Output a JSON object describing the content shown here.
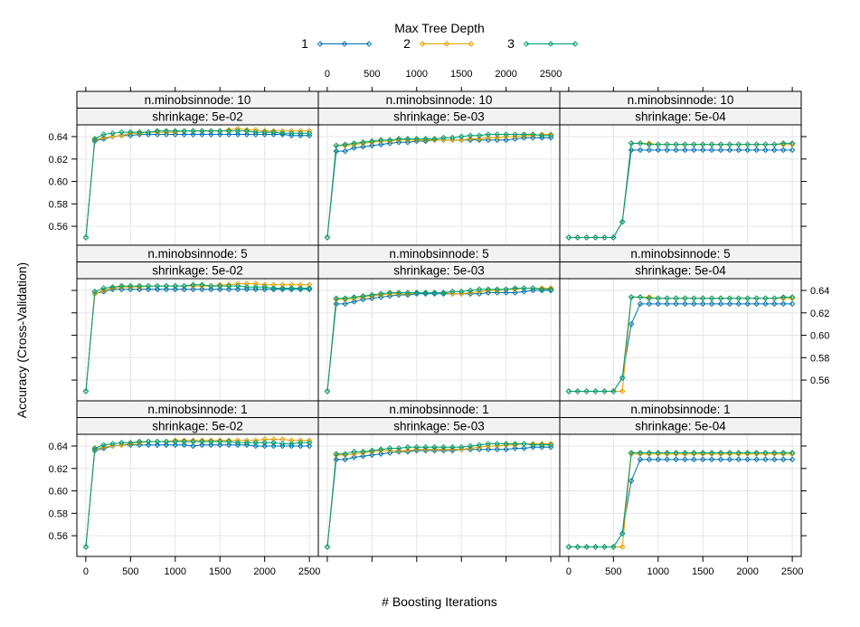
{
  "chart_data": {
    "type": "line",
    "legend": {
      "title": "Max Tree Depth",
      "placement": "top",
      "entries": [
        "1",
        "2",
        "3"
      ]
    },
    "xlabel": "# Boosting Iterations",
    "ylabel": "Accuracy (Cross-Validation)",
    "xlim": [
      -100,
      2600
    ],
    "ylim": [
      0.5415,
      0.6505
    ],
    "x_ticks": [
      "0",
      "500",
      "1000",
      "1500",
      "2000",
      "2500"
    ],
    "y_ticks": [
      "0.56",
      "0.58",
      "0.60",
      "0.62",
      "0.64"
    ],
    "grid": true,
    "colors": {
      "1": "#0072B2",
      "2": "#E69F00",
      "3": "#009E73"
    },
    "x": [
      1,
      100,
      200,
      300,
      400,
      500,
      600,
      700,
      800,
      900,
      1000,
      1100,
      1200,
      1300,
      1400,
      1500,
      1600,
      1700,
      1800,
      1900,
      2000,
      2100,
      2200,
      2300,
      2400,
      2500
    ],
    "panels": [
      {
        "minobsinnode_label": "n.minobsinnode: 10",
        "shrinkage_label": "shrinkage: 5e-02",
        "series": [
          {
            "name": "1",
            "values": [
              0.55,
              0.636,
              0.638,
              0.64,
              0.641,
              0.641,
              0.642,
              0.642,
              0.642,
              0.642,
              0.642,
              0.642,
              0.642,
              0.642,
              0.642,
              0.642,
              0.642,
              0.642,
              0.642,
              0.642,
              0.642,
              0.642,
              0.642,
              0.641,
              0.641,
              0.641
            ]
          },
          {
            "name": "2",
            "values": [
              0.55,
              0.637,
              0.639,
              0.64,
              0.641,
              0.643,
              0.643,
              0.644,
              0.644,
              0.644,
              0.644,
              0.645,
              0.645,
              0.645,
              0.645,
              0.645,
              0.646,
              0.647,
              0.646,
              0.646,
              0.645,
              0.645,
              0.645,
              0.645,
              0.645,
              0.645
            ]
          },
          {
            "name": "3",
            "values": [
              0.55,
              0.638,
              0.642,
              0.643,
              0.644,
              0.644,
              0.644,
              0.644,
              0.645,
              0.645,
              0.645,
              0.645,
              0.645,
              0.645,
              0.645,
              0.645,
              0.645,
              0.645,
              0.645,
              0.644,
              0.644,
              0.644,
              0.643,
              0.643,
              0.643,
              0.643
            ]
          }
        ]
      },
      {
        "minobsinnode_label": "n.minobsinnode: 10",
        "shrinkage_label": "shrinkage: 5e-03",
        "series": [
          {
            "name": "1",
            "values": [
              0.55,
              0.627,
              0.627,
              0.63,
              0.631,
              0.632,
              0.633,
              0.634,
              0.635,
              0.635,
              0.636,
              0.636,
              0.637,
              0.637,
              0.637,
              0.637,
              0.637,
              0.637,
              0.637,
              0.637,
              0.637,
              0.638,
              0.639,
              0.639,
              0.639,
              0.639
            ]
          },
          {
            "name": "2",
            "values": [
              0.55,
              0.632,
              0.632,
              0.633,
              0.634,
              0.635,
              0.636,
              0.636,
              0.637,
              0.637,
              0.637,
              0.637,
              0.637,
              0.637,
              0.637,
              0.637,
              0.638,
              0.638,
              0.639,
              0.639,
              0.64,
              0.64,
              0.641,
              0.641,
              0.642,
              0.642
            ]
          },
          {
            "name": "3",
            "values": [
              0.55,
              0.632,
              0.633,
              0.634,
              0.635,
              0.636,
              0.637,
              0.637,
              0.638,
              0.638,
              0.638,
              0.638,
              0.638,
              0.639,
              0.639,
              0.64,
              0.641,
              0.641,
              0.642,
              0.642,
              0.642,
              0.642,
              0.642,
              0.642,
              0.641,
              0.641
            ]
          }
        ]
      },
      {
        "minobsinnode_label": "n.minobsinnode: 10",
        "shrinkage_label": "shrinkage: 5e-04",
        "series": [
          {
            "name": "1",
            "values": [
              0.55,
              0.55,
              0.55,
              0.55,
              0.55,
              0.55,
              0.564,
              0.628,
              0.628,
              0.628,
              0.628,
              0.628,
              0.628,
              0.628,
              0.628,
              0.628,
              0.628,
              0.628,
              0.628,
              0.628,
              0.628,
              0.628,
              0.628,
              0.628,
              0.628,
              0.628
            ]
          },
          {
            "name": "2",
            "values": [
              0.55,
              0.55,
              0.55,
              0.55,
              0.55,
              0.55,
              0.564,
              0.634,
              0.634,
              0.634,
              0.633,
              0.633,
              0.633,
              0.633,
              0.633,
              0.633,
              0.633,
              0.633,
              0.633,
              0.633,
              0.633,
              0.633,
              0.633,
              0.633,
              0.633,
              0.633
            ]
          },
          {
            "name": "3",
            "values": [
              0.55,
              0.55,
              0.55,
              0.55,
              0.55,
              0.55,
              0.564,
              0.634,
              0.634,
              0.633,
              0.633,
              0.633,
              0.633,
              0.633,
              0.633,
              0.633,
              0.633,
              0.633,
              0.633,
              0.633,
              0.633,
              0.633,
              0.633,
              0.633,
              0.634,
              0.634
            ]
          }
        ]
      },
      {
        "minobsinnode_label": "n.minobsinnode:  5",
        "shrinkage_label": "shrinkage: 5e-02",
        "series": [
          {
            "name": "1",
            "values": [
              0.55,
              0.637,
              0.639,
              0.641,
              0.641,
              0.641,
              0.641,
              0.641,
              0.641,
              0.641,
              0.641,
              0.641,
              0.641,
              0.641,
              0.641,
              0.641,
              0.641,
              0.641,
              0.641,
              0.641,
              0.641,
              0.641,
              0.641,
              0.641,
              0.641,
              0.641
            ]
          },
          {
            "name": "2",
            "values": [
              0.55,
              0.637,
              0.64,
              0.642,
              0.643,
              0.643,
              0.643,
              0.644,
              0.644,
              0.644,
              0.644,
              0.644,
              0.644,
              0.644,
              0.644,
              0.645,
              0.645,
              0.646,
              0.646,
              0.646,
              0.645,
              0.645,
              0.645,
              0.645,
              0.645,
              0.645
            ]
          },
          {
            "name": "3",
            "values": [
              0.55,
              0.639,
              0.642,
              0.643,
              0.644,
              0.644,
              0.644,
              0.644,
              0.644,
              0.644,
              0.644,
              0.644,
              0.645,
              0.645,
              0.644,
              0.644,
              0.644,
              0.644,
              0.643,
              0.643,
              0.643,
              0.642,
              0.642,
              0.642,
              0.642,
              0.642
            ]
          }
        ]
      },
      {
        "minobsinnode_label": "n.minobsinnode:  5",
        "shrinkage_label": "shrinkage: 5e-03",
        "series": [
          {
            "name": "1",
            "values": [
              0.55,
              0.628,
              0.628,
              0.63,
              0.632,
              0.633,
              0.634,
              0.635,
              0.636,
              0.636,
              0.637,
              0.637,
              0.637,
              0.637,
              0.637,
              0.637,
              0.637,
              0.637,
              0.638,
              0.638,
              0.638,
              0.638,
              0.639,
              0.64,
              0.64,
              0.64
            ]
          },
          {
            "name": "2",
            "values": [
              0.55,
              0.632,
              0.632,
              0.633,
              0.634,
              0.635,
              0.636,
              0.637,
              0.637,
              0.637,
              0.638,
              0.638,
              0.638,
              0.638,
              0.637,
              0.637,
              0.638,
              0.639,
              0.64,
              0.64,
              0.641,
              0.641,
              0.642,
              0.642,
              0.642,
              0.642
            ]
          },
          {
            "name": "3",
            "values": [
              0.55,
              0.633,
              0.633,
              0.634,
              0.635,
              0.636,
              0.637,
              0.638,
              0.638,
              0.638,
              0.638,
              0.638,
              0.638,
              0.638,
              0.639,
              0.639,
              0.64,
              0.641,
              0.641,
              0.641,
              0.641,
              0.642,
              0.642,
              0.642,
              0.641,
              0.641
            ]
          }
        ]
      },
      {
        "minobsinnode_label": "n.minobsinnode:  5",
        "shrinkage_label": "shrinkage: 5e-04",
        "series": [
          {
            "name": "1",
            "values": [
              0.55,
              0.55,
              0.55,
              0.55,
              0.55,
              0.55,
              0.562,
              0.61,
              0.628,
              0.628,
              0.628,
              0.628,
              0.628,
              0.628,
              0.628,
              0.628,
              0.628,
              0.628,
              0.628,
              0.628,
              0.628,
              0.628,
              0.628,
              0.628,
              0.628,
              0.628
            ]
          },
          {
            "name": "2",
            "values": [
              0.55,
              0.55,
              0.55,
              0.55,
              0.55,
              0.55,
              0.55,
              0.634,
              0.634,
              0.634,
              0.633,
              0.633,
              0.633,
              0.633,
              0.633,
              0.633,
              0.633,
              0.633,
              0.633,
              0.633,
              0.633,
              0.633,
              0.633,
              0.633,
              0.633,
              0.633
            ]
          },
          {
            "name": "3",
            "values": [
              0.55,
              0.55,
              0.55,
              0.55,
              0.55,
              0.55,
              0.562,
              0.634,
              0.634,
              0.633,
              0.633,
              0.633,
              0.633,
              0.633,
              0.633,
              0.633,
              0.633,
              0.633,
              0.633,
              0.633,
              0.633,
              0.633,
              0.633,
              0.633,
              0.634,
              0.634
            ]
          }
        ]
      },
      {
        "minobsinnode_label": "n.minobsinnode:  1",
        "shrinkage_label": "shrinkage: 5e-02",
        "series": [
          {
            "name": "1",
            "values": [
              0.55,
              0.636,
              0.638,
              0.64,
              0.641,
              0.641,
              0.641,
              0.641,
              0.641,
              0.641,
              0.641,
              0.641,
              0.64,
              0.641,
              0.641,
              0.641,
              0.641,
              0.641,
              0.641,
              0.64,
              0.64,
              0.64,
              0.64,
              0.64,
              0.64,
              0.64
            ]
          },
          {
            "name": "2",
            "values": [
              0.55,
              0.637,
              0.639,
              0.64,
              0.641,
              0.642,
              0.643,
              0.644,
              0.644,
              0.644,
              0.645,
              0.645,
              0.645,
              0.645,
              0.645,
              0.645,
              0.645,
              0.645,
              0.645,
              0.645,
              0.646,
              0.646,
              0.646,
              0.645,
              0.645,
              0.645
            ]
          },
          {
            "name": "3",
            "values": [
              0.55,
              0.638,
              0.641,
              0.642,
              0.643,
              0.643,
              0.644,
              0.644,
              0.644,
              0.644,
              0.644,
              0.644,
              0.644,
              0.644,
              0.644,
              0.644,
              0.644,
              0.643,
              0.643,
              0.643,
              0.643,
              0.643,
              0.642,
              0.642,
              0.643,
              0.643
            ]
          }
        ]
      },
      {
        "minobsinnode_label": "n.minobsinnode:  1",
        "shrinkage_label": "shrinkage: 5e-03",
        "series": [
          {
            "name": "1",
            "values": [
              0.55,
              0.628,
              0.628,
              0.63,
              0.631,
              0.632,
              0.633,
              0.634,
              0.635,
              0.635,
              0.636,
              0.636,
              0.636,
              0.636,
              0.636,
              0.637,
              0.637,
              0.637,
              0.637,
              0.637,
              0.637,
              0.638,
              0.638,
              0.639,
              0.639,
              0.639
            ]
          },
          {
            "name": "2",
            "values": [
              0.55,
              0.632,
              0.632,
              0.633,
              0.634,
              0.635,
              0.636,
              0.636,
              0.636,
              0.636,
              0.637,
              0.637,
              0.637,
              0.637,
              0.637,
              0.637,
              0.638,
              0.639,
              0.64,
              0.64,
              0.641,
              0.641,
              0.642,
              0.642,
              0.642,
              0.642
            ]
          },
          {
            "name": "3",
            "values": [
              0.55,
              0.633,
              0.633,
              0.635,
              0.635,
              0.636,
              0.637,
              0.638,
              0.638,
              0.639,
              0.639,
              0.639,
              0.639,
              0.639,
              0.639,
              0.639,
              0.64,
              0.641,
              0.642,
              0.642,
              0.642,
              0.642,
              0.642,
              0.641,
              0.641,
              0.641
            ]
          }
        ]
      },
      {
        "minobsinnode_label": "n.minobsinnode:  1",
        "shrinkage_label": "shrinkage: 5e-04",
        "series": [
          {
            "name": "1",
            "values": [
              0.55,
              0.55,
              0.55,
              0.55,
              0.55,
              0.55,
              0.562,
              0.609,
              0.628,
              0.628,
              0.628,
              0.628,
              0.628,
              0.628,
              0.628,
              0.628,
              0.628,
              0.628,
              0.628,
              0.628,
              0.628,
              0.628,
              0.628,
              0.628,
              0.628,
              0.628
            ]
          },
          {
            "name": "2",
            "values": [
              0.55,
              0.55,
              0.55,
              0.55,
              0.55,
              0.55,
              0.55,
              0.633,
              0.633,
              0.633,
              0.633,
              0.633,
              0.633,
              0.633,
              0.633,
              0.633,
              0.633,
              0.633,
              0.633,
              0.633,
              0.633,
              0.633,
              0.633,
              0.633,
              0.633,
              0.633
            ]
          },
          {
            "name": "3",
            "values": [
              0.55,
              0.55,
              0.55,
              0.55,
              0.55,
              0.55,
              0.562,
              0.634,
              0.634,
              0.634,
              0.634,
              0.634,
              0.634,
              0.634,
              0.634,
              0.634,
              0.634,
              0.634,
              0.634,
              0.634,
              0.634,
              0.634,
              0.634,
              0.634,
              0.634,
              0.634
            ]
          }
        ]
      }
    ]
  }
}
